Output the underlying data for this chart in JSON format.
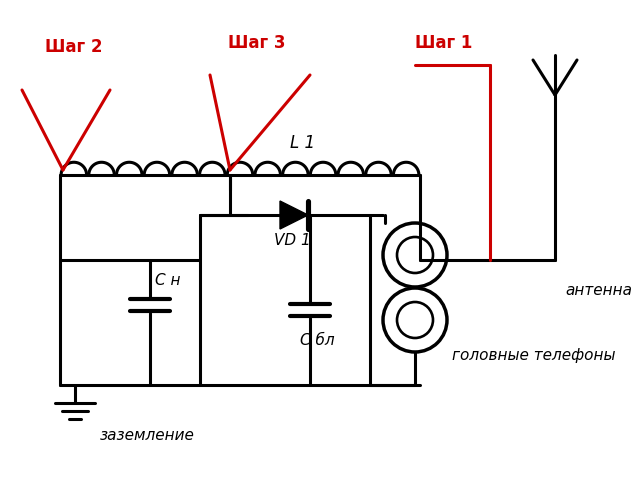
{
  "bg_color": "#ffffff",
  "line_color": "black",
  "red_color": "#cc0000",
  "lw": 2.2,
  "labels": {
    "shag1": "Шаг 1",
    "shag2": "Шаг 2",
    "shag3": "Шаг 3",
    "L1": "L 1",
    "VD1": "VD 1",
    "Ch": "С н",
    "Cbl": "С бл",
    "antenna": "антенна",
    "ground": "заземление",
    "headphones": "головные телефоны"
  }
}
